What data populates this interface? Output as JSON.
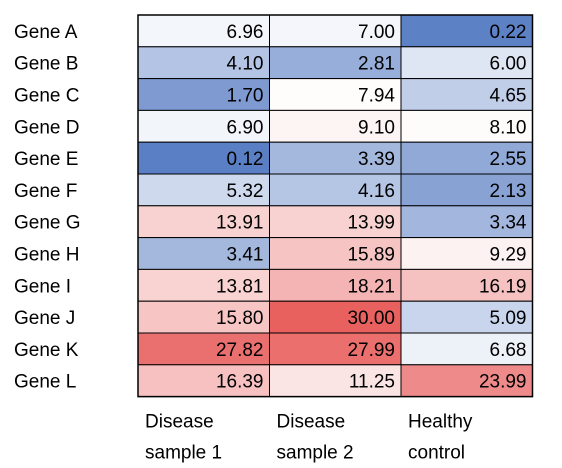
{
  "chart_data": {
    "type": "heatmap",
    "rows": [
      "Gene A",
      "Gene B",
      "Gene C",
      "Gene D",
      "Gene E",
      "Gene F",
      "Gene G",
      "Gene H",
      "Gene I",
      "Gene J",
      "Gene K",
      "Gene L"
    ],
    "columns": [
      {
        "line1": "Disease",
        "line2": "sample 1"
      },
      {
        "line1": "Disease",
        "line2": "sample 2"
      },
      {
        "line1": "Healthy",
        "line2": "control"
      }
    ],
    "values": [
      [
        "6.96",
        "7.00",
        "0.22"
      ],
      [
        "4.10",
        "2.81",
        "6.00"
      ],
      [
        "1.70",
        "7.94",
        "4.65"
      ],
      [
        "6.90",
        "9.10",
        "8.10"
      ],
      [
        "0.12",
        "3.39",
        "2.55"
      ],
      [
        "5.32",
        "4.16",
        "2.13"
      ],
      [
        "13.91",
        "13.99",
        "3.34"
      ],
      [
        "3.41",
        "15.89",
        "9.29"
      ],
      [
        "13.81",
        "18.21",
        "16.19"
      ],
      [
        "15.80",
        "30.00",
        "5.09"
      ],
      [
        "27.82",
        "27.99",
        "6.68"
      ],
      [
        "16.39",
        "11.25",
        "23.99"
      ]
    ],
    "color_scale": {
      "min": 0.12,
      "mid": 7.5,
      "max": 30,
      "low_color": "#5b7fc4",
      "mid_color": "#ffffff",
      "high_color": "#e8615f"
    }
  }
}
